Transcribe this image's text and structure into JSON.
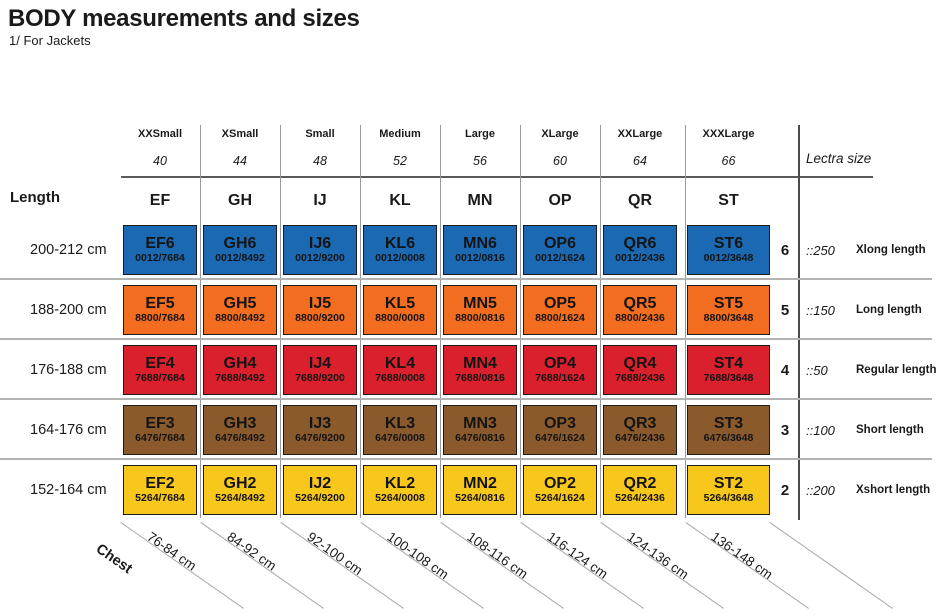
{
  "page": {
    "title": "BODY measurements and sizes",
    "subtitle": "1/ For Jackets",
    "length_label": "Length",
    "chest_label": "Chest",
    "lectra_label": "Lectra size"
  },
  "columns": [
    {
      "size": "XXSmall",
      "number": "40",
      "code": "EF",
      "chest": "76-84 cm"
    },
    {
      "size": "XSmall",
      "number": "44",
      "code": "GH",
      "chest": "84-92 cm"
    },
    {
      "size": "Small",
      "number": "48",
      "code": "IJ",
      "chest": "92-100 cm"
    },
    {
      "size": "Medium",
      "number": "52",
      "code": "KL",
      "chest": "100-108 cm"
    },
    {
      "size": "Large",
      "number": "56",
      "code": "MN",
      "chest": "108-116 cm"
    },
    {
      "size": "XLarge",
      "number": "60",
      "code": "OP",
      "chest": "116-124 cm"
    },
    {
      "size": "XXLarge",
      "number": "64",
      "code": "QR",
      "chest": "124-136 cm"
    },
    {
      "size": "XXXLarge",
      "number": "66",
      "code": "ST",
      "chest": "136-148 cm"
    }
  ],
  "rows": [
    {
      "length": "200-212 cm",
      "color": "#1a69b2",
      "size_num": "6",
      "lectra": "::250",
      "length_name": "Xlong length",
      "cells": [
        {
          "code": "EF6",
          "sub": "0012/7684"
        },
        {
          "code": "GH6",
          "sub": "0012/8492"
        },
        {
          "code": "IJ6",
          "sub": "0012/9200"
        },
        {
          "code": "KL6",
          "sub": "0012/0008"
        },
        {
          "code": "MN6",
          "sub": "0012/0816"
        },
        {
          "code": "OP6",
          "sub": "0012/1624"
        },
        {
          "code": "QR6",
          "sub": "0012/2436"
        },
        {
          "code": "ST6",
          "sub": "0012/3648"
        }
      ]
    },
    {
      "length": "188-200 cm",
      "color": "#f26d1f",
      "size_num": "5",
      "lectra": "::150",
      "length_name": "Long length",
      "cells": [
        {
          "code": "EF5",
          "sub": "8800/7684"
        },
        {
          "code": "GH5",
          "sub": "8800/8492"
        },
        {
          "code": "IJ5",
          "sub": "8800/9200"
        },
        {
          "code": "KL5",
          "sub": "8800/0008"
        },
        {
          "code": "MN5",
          "sub": "8800/0816"
        },
        {
          "code": "OP5",
          "sub": "8800/1624"
        },
        {
          "code": "QR5",
          "sub": "8800/2436"
        },
        {
          "code": "ST5",
          "sub": "8800/3648"
        }
      ]
    },
    {
      "length": "176-188 cm",
      "color": "#da1f2d",
      "size_num": "4",
      "lectra": "::50",
      "length_name": "Regular length",
      "cells": [
        {
          "code": "EF4",
          "sub": "7688/7684"
        },
        {
          "code": "GH4",
          "sub": "7688/8492"
        },
        {
          "code": "IJ4",
          "sub": "7688/9200"
        },
        {
          "code": "KL4",
          "sub": "7688/0008"
        },
        {
          "code": "MN4",
          "sub": "7688/0816"
        },
        {
          "code": "OP4",
          "sub": "7688/1624"
        },
        {
          "code": "QR4",
          "sub": "7688/2436"
        },
        {
          "code": "ST4",
          "sub": "7688/3648"
        }
      ]
    },
    {
      "length": "164-176 cm",
      "color": "#8a5a2d",
      "size_num": "3",
      "lectra": "::100",
      "length_name": "Short length",
      "cells": [
        {
          "code": "EF3",
          "sub": "6476/7684"
        },
        {
          "code": "GH3",
          "sub": "6476/8492"
        },
        {
          "code": "IJ3",
          "sub": "6476/9200"
        },
        {
          "code": "KL3",
          "sub": "6476/0008"
        },
        {
          "code": "MN3",
          "sub": "6476/0816"
        },
        {
          "code": "OP3",
          "sub": "6476/1624"
        },
        {
          "code": "QR3",
          "sub": "6476/2436"
        },
        {
          "code": "ST3",
          "sub": "6476/3648"
        }
      ]
    },
    {
      "length": "152-164 cm",
      "color": "#f8c71c",
      "size_num": "2",
      "lectra": "::200",
      "length_name": "Xshort length",
      "cells": [
        {
          "code": "EF2",
          "sub": "5264/7684"
        },
        {
          "code": "GH2",
          "sub": "5264/8492"
        },
        {
          "code": "IJ2",
          "sub": "5264/9200"
        },
        {
          "code": "KL2",
          "sub": "5264/0008"
        },
        {
          "code": "MN2",
          "sub": "5264/0816"
        },
        {
          "code": "OP2",
          "sub": "5264/1624"
        },
        {
          "code": "QR2",
          "sub": "5264/2436"
        },
        {
          "code": "ST2",
          "sub": "5264/3648"
        }
      ]
    }
  ]
}
